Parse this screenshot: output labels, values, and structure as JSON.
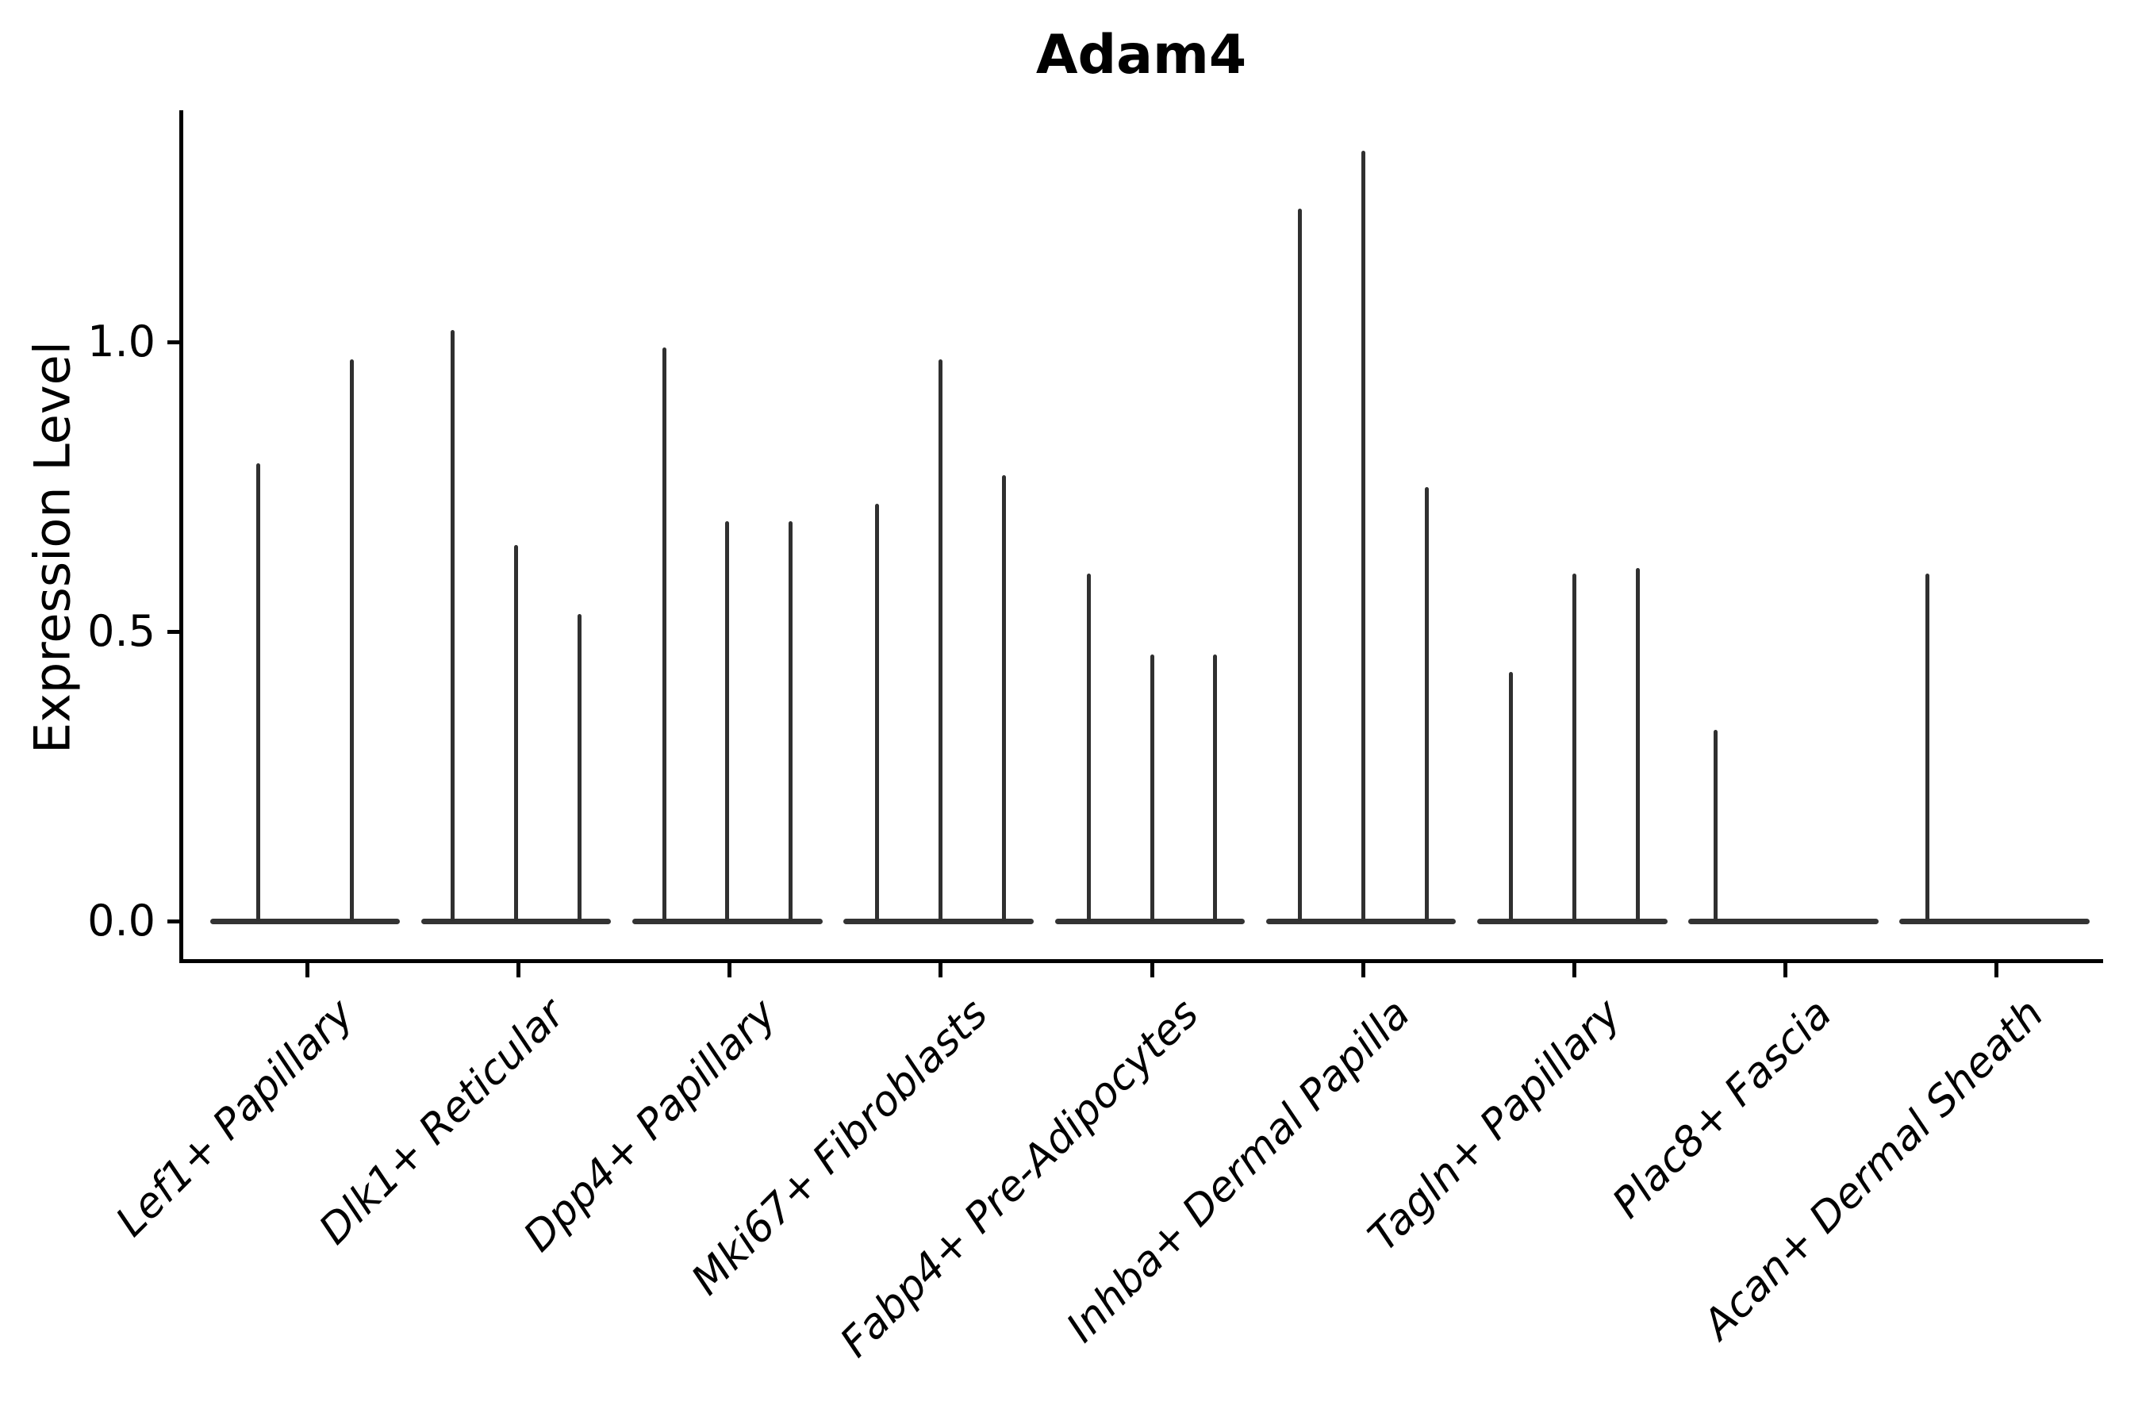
{
  "chart_data": {
    "type": "violin",
    "title": "Adam4",
    "xlabel": "",
    "ylabel": "Expression Level",
    "ylim": [
      -0.07,
      1.4
    ],
    "grid": false,
    "legend": null,
    "yticks": [
      {
        "label": "0.0",
        "value": 0.0
      },
      {
        "label": "0.5",
        "value": 0.5
      },
      {
        "label": "1.0",
        "value": 1.0
      }
    ],
    "categories": [
      "Lef1+ Papillary",
      "Dlk1+ Reticular",
      "Dpp4+ Papillary",
      "Mki67+ Fibroblasts",
      "Fabp4+ Pre-Adipocytes",
      "Inhba+ Dermal Papilla",
      "Tagln+ Papillary",
      "Plac8+ Fascia",
      "Acan+ Dermal Sheath"
    ],
    "series": [
      {
        "category": "Lef1+ Papillary",
        "spikes": [
          {
            "x": 0.27,
            "peak": 0.79
          },
          {
            "x": 0.71,
            "peak": 0.97
          }
        ]
      },
      {
        "category": "Dlk1+ Reticular",
        "spikes": [
          {
            "x": 0.19,
            "peak": 1.02
          },
          {
            "x": 0.49,
            "peak": 0.65
          },
          {
            "x": 0.79,
            "peak": 0.53
          }
        ]
      },
      {
        "category": "Dpp4+ Papillary",
        "spikes": [
          {
            "x": 0.19,
            "peak": 0.99
          },
          {
            "x": 0.49,
            "peak": 0.69
          },
          {
            "x": 0.79,
            "peak": 0.69
          }
        ]
      },
      {
        "category": "Mki67+ Fibroblasts",
        "spikes": [
          {
            "x": 0.2,
            "peak": 0.72
          },
          {
            "x": 0.5,
            "peak": 0.97
          },
          {
            "x": 0.8,
            "peak": 0.77
          }
        ]
      },
      {
        "category": "Fabp4+ Pre-Adipocytes",
        "spikes": [
          {
            "x": 0.2,
            "peak": 0.6
          },
          {
            "x": 0.5,
            "peak": 0.46
          },
          {
            "x": 0.8,
            "peak": 0.46
          }
        ]
      },
      {
        "category": "Inhba+ Dermal Papilla",
        "spikes": [
          {
            "x": 0.2,
            "peak": 1.23
          },
          {
            "x": 0.5,
            "peak": 1.33
          },
          {
            "x": 0.8,
            "peak": 0.75
          }
        ]
      },
      {
        "category": "Tagln+ Papillary",
        "spikes": [
          {
            "x": 0.2,
            "peak": 0.43
          },
          {
            "x": 0.5,
            "peak": 0.6
          },
          {
            "x": 0.8,
            "peak": 0.61
          }
        ]
      },
      {
        "category": "Plac8+ Fascia",
        "spikes": [
          {
            "x": 0.17,
            "peak": 0.33
          }
        ]
      },
      {
        "category": "Acan+ Dermal Sheath",
        "spikes": [
          {
            "x": 0.17,
            "peak": 0.6
          }
        ]
      }
    ],
    "base_band": {
      "x_start": 0.04,
      "x_end": 0.94
    },
    "colors": {
      "violin": "#333333",
      "spike": "#303030",
      "axis": "#000000"
    }
  }
}
